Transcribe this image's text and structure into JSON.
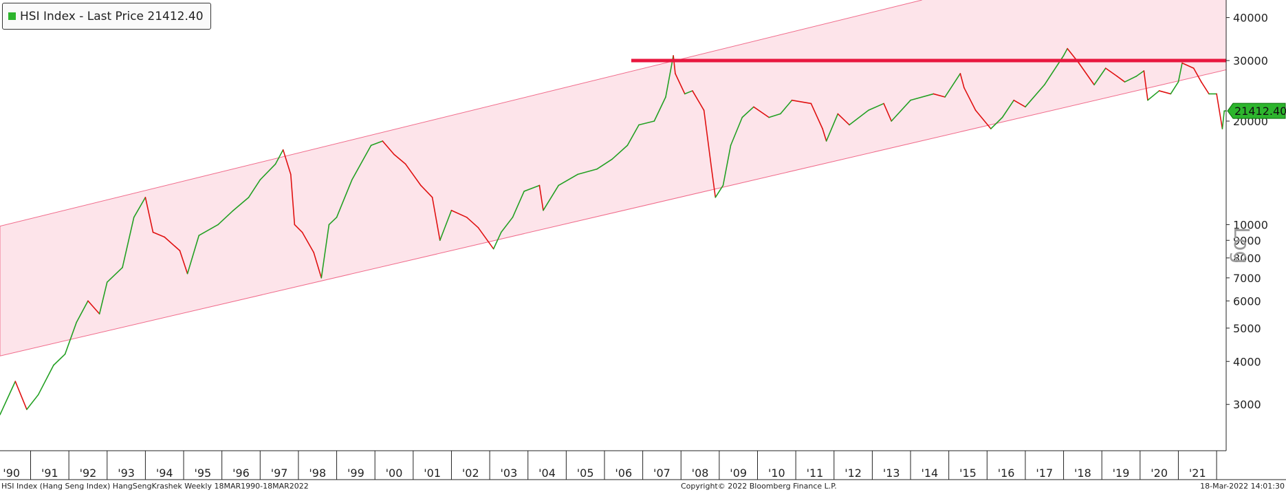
{
  "legend": {
    "text": "HSI Index - Last Price 21412.40",
    "swatch_color": "#2db52d"
  },
  "last_price_tag": "21412.40",
  "scale_label": "Log",
  "footer": {
    "left": "HSI Index (Hang Seng Index) HangSengKrashek  Weekly 18MAR1990-18MAR2022",
    "center": "Copyright© 2022 Bloomberg Finance L.P.",
    "right": "18-Mar-2022 14:01:30"
  },
  "chart_data": {
    "type": "line",
    "title": "",
    "y_scale": "log",
    "ylim": [
      2200,
      45000
    ],
    "y_ticks": [
      3000,
      4000,
      5000,
      6000,
      7000,
      8000,
      9000,
      10000,
      20000,
      30000,
      40000
    ],
    "y_tick_labels": [
      "3000",
      "4000",
      "5000",
      "6000",
      "7000",
      "8000",
      "9000",
      "10000",
      "20000",
      "30000",
      "40000"
    ],
    "x_range": [
      1990.2,
      2022.25
    ],
    "x_tick_labels": [
      "'90",
      "'91",
      "'92",
      "'93",
      "'94",
      "'95",
      "'96",
      "'97",
      "'98",
      "'99",
      "'00",
      "'01",
      "'02",
      "'03",
      "'04",
      "'05",
      "'06",
      "'07",
      "'08",
      "'09",
      "'10",
      "'11",
      "'12",
      "'13",
      "'14",
      "'15",
      "'16",
      "'17",
      "'18",
      "'19",
      "'20",
      "'21"
    ],
    "grid": false,
    "legend_position": "top-left",
    "colors": {
      "up": "#22a022",
      "down": "#e01010",
      "channel_fill": "#fde4ea",
      "channel_line": "#f06a8a",
      "resistance": "#e8173f",
      "price_tag": "#2db52d"
    },
    "series": [
      {
        "name": "HSI Index",
        "x": [
          1990.2,
          1990.6,
          1990.9,
          1991.2,
          1991.6,
          1991.9,
          1992.2,
          1992.5,
          1992.8,
          1993.0,
          1993.4,
          1993.7,
          1994.0,
          1994.2,
          1994.5,
          1994.9,
          1995.1,
          1995.4,
          1995.9,
          1996.3,
          1996.7,
          1997.0,
          1997.4,
          1997.6,
          1997.8,
          1997.9,
          1998.1,
          1998.4,
          1998.6,
          1998.8,
          1999.0,
          1999.4,
          1999.9,
          2000.2,
          2000.5,
          2000.8,
          2001.2,
          2001.5,
          2001.7,
          2002.0,
          2002.4,
          2002.7,
          2003.1,
          2003.3,
          2003.6,
          2003.9,
          2004.3,
          2004.4,
          2004.8,
          2005.3,
          2005.8,
          2006.2,
          2006.6,
          2006.9,
          2007.3,
          2007.6,
          2007.8,
          2007.85,
          2008.1,
          2008.3,
          2008.6,
          2008.8,
          2008.9,
          2009.1,
          2009.3,
          2009.6,
          2009.9,
          2010.3,
          2010.6,
          2010.9,
          2011.4,
          2011.7,
          2011.8,
          2012.1,
          2012.4,
          2012.9,
          2013.3,
          2013.5,
          2014.0,
          2014.6,
          2014.9,
          2015.3,
          2015.4,
          2015.7,
          2016.1,
          2016.4,
          2016.7,
          2017.0,
          2017.5,
          2018.0,
          2018.1,
          2018.4,
          2018.8,
          2019.1,
          2019.4,
          2019.6,
          2019.9,
          2020.1,
          2020.2,
          2020.5,
          2020.8,
          2021.0,
          2021.1,
          2021.4,
          2021.6,
          2021.8,
          2022.0,
          2022.15,
          2022.2,
          2022.25
        ],
        "y": [
          2800,
          3500,
          2900,
          3200,
          3900,
          4200,
          5200,
          6000,
          5500,
          6800,
          7500,
          10500,
          12000,
          9500,
          9200,
          8400,
          7200,
          9300,
          10000,
          11000,
          12000,
          13500,
          15000,
          16500,
          14000,
          10000,
          9500,
          8300,
          7000,
          10000,
          10500,
          13500,
          17000,
          17500,
          16000,
          15000,
          13000,
          12000,
          9000,
          11000,
          10500,
          9800,
          8500,
          9500,
          10500,
          12500,
          13000,
          11000,
          13000,
          14000,
          14500,
          15500,
          17000,
          19500,
          20000,
          23500,
          31000,
          27500,
          24000,
          24500,
          21500,
          14500,
          12000,
          13000,
          17000,
          20500,
          22000,
          20500,
          21000,
          23000,
          22500,
          19000,
          17500,
          21000,
          19500,
          21500,
          22500,
          20000,
          23000,
          24000,
          23500,
          27500,
          25000,
          21500,
          19000,
          20500,
          23000,
          22000,
          25500,
          31000,
          32500,
          29500,
          25500,
          28500,
          27000,
          26000,
          27000,
          28000,
          23000,
          24500,
          24000,
          26000,
          29500,
          28500,
          26000,
          24000,
          24000,
          19000,
          21412.4,
          21412.4
        ]
      }
    ],
    "channel": {
      "upper": {
        "x": [
          1990.2,
          2014.3
        ],
        "y": [
          9900,
          45000
        ]
      },
      "lower": {
        "x": [
          1990.2,
          2022.25
        ],
        "y": [
          4150,
          28200
        ]
      }
    },
    "resistance": {
      "x": [
        2006.7,
        2022.25
      ],
      "y": 30000
    },
    "last_price": 21412.4
  }
}
